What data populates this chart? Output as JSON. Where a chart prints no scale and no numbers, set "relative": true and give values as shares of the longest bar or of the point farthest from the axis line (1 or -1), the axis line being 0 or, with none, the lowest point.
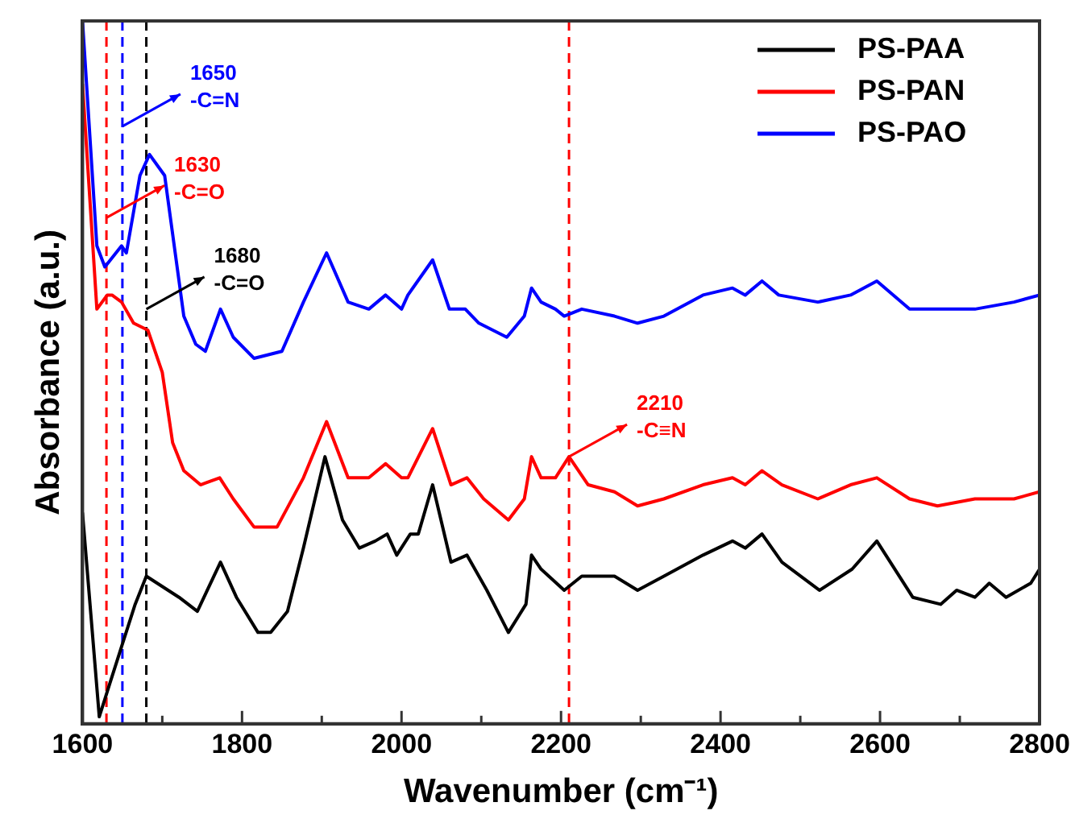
{
  "chart_data": {
    "type": "line",
    "relative": true,
    "xlabel": "Wavenumber (cm⁻¹)",
    "ylabel": "Absorbance (a.u.)",
    "xlim": [
      1600,
      2800
    ],
    "xticks": [
      1600,
      {
        "value": 1700,
        "label": null
      },
      1800,
      {
        "value": 1900,
        "label": null
      },
      2000,
      {
        "value": 2100,
        "label": null
      },
      2200,
      {
        "value": 2300,
        "label": null
      },
      2400,
      {
        "value": 2500,
        "label": null
      },
      2600,
      {
        "value": 2700,
        "label": null
      },
      2800
    ],
    "legend": "top right",
    "grid": false,
    "marker": "none",
    "line_style": "solid",
    "series": [
      {
        "name": "PS-PAA",
        "color": "#000000",
        "x": [
          1600,
          1621,
          1635,
          1649,
          1666,
          1680,
          1721,
          1744,
          1773,
          1793,
          1820,
          1836,
          1857,
          1877,
          1904,
          1926,
          1947,
          1967,
          1982,
          1994,
          2011,
          2021,
          2039,
          2062,
          2082,
          2107,
          2134,
          2156,
          2163,
          2175,
          2204,
          2226,
          2267,
          2296,
          2329,
          2378,
          2415,
          2431,
          2452,
          2477,
          2524,
          2565,
          2596,
          2641,
          2676,
          2696,
          2719,
          2737,
          2758,
          2789,
          2800
        ],
        "values": [
          0.3,
          0.01,
          0.06,
          0.11,
          0.17,
          0.21,
          0.18,
          0.16,
          0.23,
          0.18,
          0.13,
          0.13,
          0.16,
          0.25,
          0.38,
          0.29,
          0.25,
          0.26,
          0.27,
          0.24,
          0.27,
          0.27,
          0.34,
          0.23,
          0.24,
          0.19,
          0.13,
          0.17,
          0.24,
          0.22,
          0.19,
          0.21,
          0.21,
          0.19,
          0.21,
          0.24,
          0.26,
          0.25,
          0.27,
          0.23,
          0.19,
          0.22,
          0.26,
          0.18,
          0.17,
          0.19,
          0.18,
          0.2,
          0.18,
          0.2,
          0.22
        ]
      },
      {
        "name": "PS-PAN",
        "color": "#ff0000",
        "x": [
          1600,
          1618,
          1631,
          1637,
          1649,
          1664,
          1682,
          1700,
          1713,
          1727,
          1748,
          1772,
          1789,
          1815,
          1844,
          1877,
          1906,
          1933,
          1959,
          1980,
          2000,
          2008,
          2039,
          2062,
          2082,
          2103,
          2134,
          2154,
          2163,
          2175,
          2193,
          2210,
          2234,
          2267,
          2296,
          2329,
          2378,
          2415,
          2431,
          2452,
          2477,
          2522,
          2563,
          2596,
          2637,
          2672,
          2719,
          2768,
          2800
        ],
        "values": [
          0.91,
          0.59,
          0.61,
          0.61,
          0.6,
          0.57,
          0.56,
          0.5,
          0.4,
          0.36,
          0.34,
          0.35,
          0.32,
          0.28,
          0.28,
          0.35,
          0.43,
          0.35,
          0.35,
          0.37,
          0.35,
          0.35,
          0.42,
          0.34,
          0.35,
          0.32,
          0.29,
          0.32,
          0.38,
          0.35,
          0.35,
          0.38,
          0.34,
          0.33,
          0.31,
          0.32,
          0.34,
          0.35,
          0.34,
          0.36,
          0.34,
          0.32,
          0.34,
          0.35,
          0.32,
          0.31,
          0.32,
          0.32,
          0.33
        ]
      },
      {
        "name": "PS-PAO",
        "color": "#0000ff",
        "x": [
          1600,
          1618,
          1628,
          1649,
          1655,
          1672,
          1684,
          1703,
          1727,
          1742,
          1754,
          1773,
          1789,
          1815,
          1850,
          1877,
          1906,
          1933,
          1959,
          1980,
          2000,
          2008,
          2039,
          2060,
          2080,
          2097,
          2132,
          2154,
          2163,
          2175,
          2193,
          2204,
          2226,
          2267,
          2296,
          2329,
          2378,
          2415,
          2431,
          2452,
          2473,
          2522,
          2563,
          2596,
          2637,
          2676,
          2719,
          2768,
          2800
        ],
        "values": [
          1.0,
          0.68,
          0.65,
          0.68,
          0.67,
          0.78,
          0.81,
          0.78,
          0.58,
          0.54,
          0.53,
          0.59,
          0.55,
          0.52,
          0.53,
          0.6,
          0.67,
          0.6,
          0.59,
          0.61,
          0.59,
          0.61,
          0.66,
          0.59,
          0.59,
          0.57,
          0.55,
          0.58,
          0.62,
          0.6,
          0.59,
          0.58,
          0.59,
          0.58,
          0.57,
          0.58,
          0.61,
          0.62,
          0.61,
          0.63,
          0.61,
          0.6,
          0.61,
          0.63,
          0.59,
          0.59,
          0.59,
          0.6,
          0.61
        ]
      }
    ],
    "ref_lines": [
      {
        "axis": "x",
        "value": 1630,
        "color": "#ff0000",
        "line_style": "dashed"
      },
      {
        "axis": "x",
        "value": 1650,
        "color": "#0000ff",
        "line_style": "dashed"
      },
      {
        "axis": "x",
        "value": 1680,
        "color": "#000000",
        "line_style": "dashed"
      },
      {
        "axis": "x",
        "value": 2210,
        "color": "#ff0000",
        "line_style": "dashed"
      }
    ],
    "annotations": [
      {
        "text": "1630\n-C=O",
        "x": 1630,
        "y": 0.72
      },
      {
        "text": "1650\n-C=N",
        "x": 1650,
        "y": 0.85
      },
      {
        "text": "1680\n-C=O",
        "x": 1680,
        "y": 0.59
      },
      {
        "text": "2210\n-C≡N",
        "x": 2210,
        "y": 0.38
      }
    ]
  }
}
